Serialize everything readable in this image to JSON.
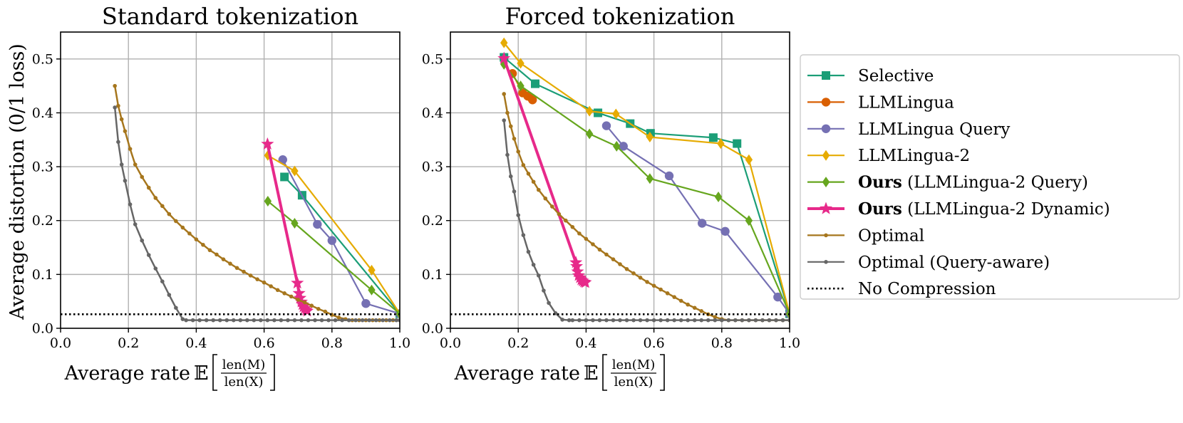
{
  "chart_data": [
    {
      "type": "line",
      "title": "Standard tokenization",
      "xlabel_prefix": "Average rate",
      "xlabel_expectation": "𝔼",
      "xlabel_num": "len(M)",
      "xlabel_den": "len(X)",
      "ylabel": "Average distortion (0/1 loss)",
      "xlim": [
        0.0,
        1.0
      ],
      "ylim": [
        0.0,
        0.55
      ],
      "xticks": [
        "0.0",
        "0.2",
        "0.4",
        "0.6",
        "0.8",
        "1.0"
      ],
      "yticks": [
        "0.0",
        "0.1",
        "0.2",
        "0.3",
        "0.4",
        "0.5"
      ],
      "grid": true,
      "series": [
        {
          "name": "Selective",
          "color": "#1b9e77",
          "marker": "square",
          "x": [
            0.66,
            0.712,
            1.0
          ],
          "y": [
            0.281,
            0.247,
            0.027
          ]
        },
        {
          "name": "LLMLingua Query",
          "color": "#7570b3",
          "marker": "circle",
          "x": [
            0.655,
            0.757,
            0.8,
            0.9,
            1.0
          ],
          "y": [
            0.313,
            0.193,
            0.163,
            0.046,
            0.027
          ]
        },
        {
          "name": "LLMLingua-2",
          "color": "#e6ab02",
          "marker": "diamond",
          "x": [
            0.611,
            0.69,
            0.917,
            1.0
          ],
          "y": [
            0.321,
            0.292,
            0.108,
            0.027
          ]
        },
        {
          "name": "Ours (LLMLingua-2 Query)",
          "color": "#66a61e",
          "marker": "diamond",
          "x": [
            0.611,
            0.69,
            0.917,
            1.0
          ],
          "y": [
            0.236,
            0.195,
            0.071,
            0.027
          ]
        },
        {
          "name": "Ours (LLMLingua-2 Dynamic)",
          "color": "#e7298a",
          "marker": "star",
          "x": [
            0.61,
            0.698,
            0.703,
            0.706,
            0.71,
            0.713,
            0.716,
            0.72,
            0.724,
            0.727
          ],
          "y": [
            0.342,
            0.084,
            0.065,
            0.056,
            0.049,
            0.044,
            0.04,
            0.037,
            0.034,
            0.032
          ]
        },
        {
          "name": "Optimal",
          "color": "#a6761d",
          "marker": "dot",
          "x": [
            0.16,
            0.17,
            0.18,
            0.19,
            0.205,
            0.22,
            0.24,
            0.26,
            0.28,
            0.3,
            0.32,
            0.34,
            0.36,
            0.38,
            0.4,
            0.42,
            0.44,
            0.46,
            0.48,
            0.5,
            0.52,
            0.54,
            0.56,
            0.58,
            0.6,
            0.62,
            0.64,
            0.66,
            0.68,
            0.7,
            0.72,
            0.74,
            0.76,
            0.78,
            0.8,
            0.82,
            0.84,
            0.86,
            0.88,
            0.9,
            0.92,
            0.94,
            0.96,
            0.98,
            1.0
          ],
          "y": [
            0.45,
            0.413,
            0.388,
            0.366,
            0.333,
            0.304,
            0.281,
            0.261,
            0.242,
            0.227,
            0.212,
            0.199,
            0.187,
            0.176,
            0.165,
            0.155,
            0.145,
            0.137,
            0.128,
            0.12,
            0.112,
            0.105,
            0.098,
            0.091,
            0.085,
            0.078,
            0.071,
            0.065,
            0.059,
            0.053,
            0.048,
            0.042,
            0.036,
            0.031,
            0.025,
            0.02,
            0.017,
            0.015,
            0.015,
            0.015,
            0.015,
            0.015,
            0.015,
            0.015,
            0.015
          ]
        },
        {
          "name": "Optimal (Query-aware)",
          "color": "#666666",
          "marker": "dot",
          "x": [
            0.16,
            0.17,
            0.18,
            0.19,
            0.205,
            0.22,
            0.24,
            0.26,
            0.28,
            0.3,
            0.32,
            0.34,
            0.36,
            0.37,
            0.39,
            0.41,
            0.43,
            0.45,
            0.47,
            0.49,
            0.51,
            0.53,
            0.55,
            0.57,
            0.59,
            0.61,
            0.63,
            0.65,
            0.67,
            0.69,
            0.71,
            0.73,
            0.75,
            0.77,
            0.79,
            0.81,
            0.83,
            0.85,
            0.87,
            0.89,
            0.91,
            0.93,
            0.95,
            0.97,
            0.99,
            1.0
          ],
          "y": [
            0.41,
            0.346,
            0.304,
            0.274,
            0.23,
            0.193,
            0.163,
            0.136,
            0.111,
            0.087,
            0.062,
            0.038,
            0.017,
            0.015,
            0.015,
            0.015,
            0.015,
            0.015,
            0.015,
            0.015,
            0.015,
            0.015,
            0.015,
            0.015,
            0.015,
            0.015,
            0.015,
            0.015,
            0.015,
            0.015,
            0.015,
            0.015,
            0.015,
            0.015,
            0.015,
            0.015,
            0.015,
            0.015,
            0.015,
            0.015,
            0.015,
            0.015,
            0.015,
            0.015,
            0.015,
            0.015
          ]
        },
        {
          "name": "No Compression",
          "color": "#000000",
          "marker": "none",
          "dashed": true,
          "x": [
            0.0,
            1.0
          ],
          "y": [
            0.026,
            0.026
          ]
        }
      ]
    },
    {
      "type": "line",
      "title": "Forced tokenization",
      "xlabel_prefix": "Average rate",
      "xlabel_expectation": "𝔼",
      "xlabel_num": "len(M)",
      "xlabel_den": "len(X)",
      "ylabel": "",
      "xlim": [
        0.0,
        1.0
      ],
      "ylim": [
        0.0,
        0.55
      ],
      "xticks": [
        "0.0",
        "0.2",
        "0.4",
        "0.6",
        "0.8",
        "1.0"
      ],
      "yticks": [
        "0.0",
        "0.1",
        "0.2",
        "0.3",
        "0.4",
        "0.5"
      ],
      "grid": true,
      "series": [
        {
          "name": "Selective",
          "color": "#1b9e77",
          "marker": "square",
          "x": [
            0.158,
            0.25,
            0.435,
            0.53,
            0.59,
            0.775,
            0.845,
            1.0
          ],
          "y": [
            0.503,
            0.454,
            0.4,
            0.38,
            0.362,
            0.354,
            0.343,
            0.027
          ]
        },
        {
          "name": "LLMLingua",
          "color": "#d95f02",
          "marker": "circle",
          "x": [
            0.183,
            0.213,
            0.228,
            0.238,
            0.242
          ],
          "y": [
            0.473,
            0.437,
            0.431,
            0.428,
            0.424
          ]
        },
        {
          "name": "LLMLingua Query",
          "color": "#7570b3",
          "marker": "circle",
          "x": [
            0.46,
            0.51,
            0.645,
            0.742,
            0.81,
            0.965,
            1.0
          ],
          "y": [
            0.376,
            0.338,
            0.283,
            0.195,
            0.18,
            0.058,
            0.027
          ]
        },
        {
          "name": "LLMLingua-2",
          "color": "#e6ab02",
          "marker": "diamond",
          "x": [
            0.158,
            0.207,
            0.41,
            0.488,
            0.588,
            0.797,
            0.88,
            1.0
          ],
          "y": [
            0.53,
            0.492,
            0.403,
            0.398,
            0.355,
            0.343,
            0.313,
            0.027
          ]
        },
        {
          "name": "Ours (LLMLingua-2 Query)",
          "color": "#66a61e",
          "marker": "diamond",
          "x": [
            0.158,
            0.207,
            0.41,
            0.49,
            0.588,
            0.79,
            0.88,
            1.0
          ],
          "y": [
            0.49,
            0.45,
            0.361,
            0.338,
            0.278,
            0.244,
            0.2,
            0.027
          ]
        },
        {
          "name": "Ours (LLMLingua-2 Dynamic)",
          "color": "#e7298a",
          "marker": "star",
          "x": [
            0.158,
            0.37,
            0.372,
            0.375,
            0.378,
            0.382,
            0.386,
            0.39,
            0.394,
            0.398
          ],
          "y": [
            0.501,
            0.122,
            0.115,
            0.105,
            0.098,
            0.094,
            0.09,
            0.088,
            0.086,
            0.085
          ]
        },
        {
          "name": "Optimal",
          "color": "#a6761d",
          "marker": "dot",
          "x": [
            0.158,
            0.168,
            0.178,
            0.188,
            0.2,
            0.215,
            0.23,
            0.245,
            0.26,
            0.28,
            0.3,
            0.32,
            0.34,
            0.36,
            0.38,
            0.4,
            0.42,
            0.44,
            0.46,
            0.48,
            0.5,
            0.52,
            0.54,
            0.56,
            0.58,
            0.6,
            0.62,
            0.64,
            0.66,
            0.68,
            0.7,
            0.72,
            0.74,
            0.76,
            0.78,
            0.8,
            0.82,
            0.84,
            0.86,
            0.88,
            0.9,
            0.92,
            0.94,
            0.96,
            0.98,
            1.0
          ],
          "y": [
            0.435,
            0.4,
            0.375,
            0.352,
            0.328,
            0.303,
            0.287,
            0.272,
            0.257,
            0.241,
            0.226,
            0.212,
            0.2,
            0.188,
            0.176,
            0.166,
            0.156,
            0.146,
            0.137,
            0.128,
            0.119,
            0.11,
            0.102,
            0.094,
            0.086,
            0.079,
            0.072,
            0.065,
            0.058,
            0.051,
            0.044,
            0.038,
            0.032,
            0.026,
            0.021,
            0.017,
            0.015,
            0.015,
            0.015,
            0.015,
            0.015,
            0.015,
            0.015,
            0.015,
            0.015,
            0.015
          ]
        },
        {
          "name": "Optimal (Query-aware)",
          "color": "#666666",
          "marker": "dot",
          "x": [
            0.158,
            0.168,
            0.178,
            0.188,
            0.2,
            0.215,
            0.23,
            0.245,
            0.26,
            0.275,
            0.29,
            0.31,
            0.33,
            0.35,
            0.36,
            0.38,
            0.4,
            0.42,
            0.44,
            0.46,
            0.48,
            0.5,
            0.52,
            0.54,
            0.56,
            0.58,
            0.6,
            0.62,
            0.64,
            0.66,
            0.68,
            0.7,
            0.72,
            0.74,
            0.76,
            0.78,
            0.8,
            0.82,
            0.84,
            0.86,
            0.88,
            0.9,
            0.92,
            0.94,
            0.96,
            0.98,
            1.0
          ],
          "y": [
            0.386,
            0.322,
            0.282,
            0.254,
            0.21,
            0.173,
            0.142,
            0.118,
            0.098,
            0.07,
            0.047,
            0.028,
            0.016,
            0.015,
            0.015,
            0.015,
            0.015,
            0.015,
            0.015,
            0.015,
            0.015,
            0.015,
            0.015,
            0.015,
            0.015,
            0.015,
            0.015,
            0.015,
            0.015,
            0.015,
            0.015,
            0.015,
            0.015,
            0.015,
            0.015,
            0.015,
            0.015,
            0.015,
            0.015,
            0.015,
            0.015,
            0.015,
            0.015,
            0.015,
            0.015,
            0.015,
            0.015
          ]
        },
        {
          "name": "No Compression",
          "color": "#000000",
          "marker": "none",
          "dashed": true,
          "x": [
            0.0,
            1.0
          ],
          "y": [
            0.026,
            0.026
          ]
        }
      ]
    }
  ],
  "legend": {
    "placement": "right",
    "entries": [
      {
        "bold": "",
        "rest": "Selective",
        "color": "#1b9e77",
        "marker": "square"
      },
      {
        "bold": "",
        "rest": "LLMLingua",
        "color": "#d95f02",
        "marker": "circle"
      },
      {
        "bold": "",
        "rest": "LLMLingua Query",
        "color": "#7570b3",
        "marker": "circle"
      },
      {
        "bold": "",
        "rest": "LLMLingua-2",
        "color": "#e6ab02",
        "marker": "diamond"
      },
      {
        "bold": "Ours",
        "rest": " (LLMLingua-2 Query)",
        "color": "#66a61e",
        "marker": "diamond"
      },
      {
        "bold": "Ours",
        "rest": " (LLMLingua-2 Dynamic)",
        "color": "#e7298a",
        "marker": "star"
      },
      {
        "bold": "",
        "rest": "Optimal",
        "color": "#a6761d",
        "marker": "dot"
      },
      {
        "bold": "",
        "rest": "Optimal (Query-aware)",
        "color": "#666666",
        "marker": "dot"
      },
      {
        "bold": "",
        "rest": "No Compression",
        "color": "#000000",
        "marker": "none",
        "dashed": true
      }
    ]
  }
}
